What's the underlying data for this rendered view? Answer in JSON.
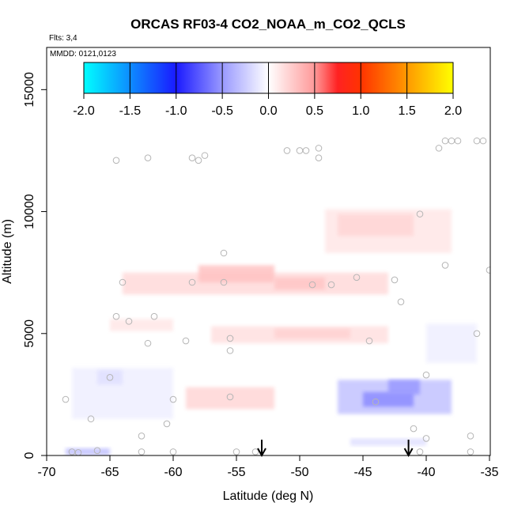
{
  "chart_data": {
    "type": "heatmap",
    "title": "ORCAS RF03-4 CO2_NOAA_m_CO2_QCLS",
    "annotations": {
      "flights": "Flts: 3,4",
      "dates": "MMDD: 0121,0123"
    },
    "xlabel": "Latitude (deg N)",
    "ylabel": "Altitude (m)",
    "xlim": [
      -70,
      -35
    ],
    "ylim": [
      0,
      16000
    ],
    "x_ticks": [
      "-70",
      "-65",
      "-60",
      "-55",
      "-50",
      "-45",
      "-40",
      "-35"
    ],
    "y_ticks": [
      "0",
      "5000",
      "10000",
      "15000"
    ],
    "colorbar": {
      "range": [
        -2.0,
        2.0
      ],
      "ticks": [
        "-2.0",
        "-1.5",
        "-1.0",
        "-0.5",
        "0.0",
        "0.5",
        "1.0",
        "1.5",
        "2.0"
      ],
      "stops": [
        {
          "value": -2.0,
          "color": "#00ffff"
        },
        {
          "value": -1.0,
          "color": "#1a1aff"
        },
        {
          "value": -0.5,
          "color": "#9999ff"
        },
        {
          "value": 0.0,
          "color": "#ffffff"
        },
        {
          "value": 0.5,
          "color": "#ff9999"
        },
        {
          "value": 0.75,
          "color": "#ff2222"
        },
        {
          "value": 1.0,
          "color": "#ff3300"
        },
        {
          "value": 1.5,
          "color": "#ff9900"
        },
        {
          "value": 2.0,
          "color": "#ffff00"
        }
      ]
    },
    "field_regions": [
      {
        "lat": [
          -48,
          -38
        ],
        "alt": [
          8300,
          10100
        ],
        "value": 0.12
      },
      {
        "lat": [
          -47,
          -41
        ],
        "alt": [
          9000,
          9900
        ],
        "value": 0.2
      },
      {
        "lat": [
          -64,
          -43
        ],
        "alt": [
          6600,
          7500
        ],
        "value": 0.18
      },
      {
        "lat": [
          -58,
          -52
        ],
        "alt": [
          7100,
          7800
        ],
        "value": 0.3
      },
      {
        "lat": [
          -52,
          -48
        ],
        "alt": [
          6800,
          7300
        ],
        "value": 0.28
      },
      {
        "lat": [
          -57,
          -43
        ],
        "alt": [
          4600,
          5300
        ],
        "value": 0.15
      },
      {
        "lat": [
          -52,
          -46
        ],
        "alt": [
          4800,
          5200
        ],
        "value": 0.22
      },
      {
        "lat": [
          -59,
          -52
        ],
        "alt": [
          1900,
          2800
        ],
        "value": 0.2
      },
      {
        "lat": [
          -65,
          -60
        ],
        "alt": [
          5100,
          5600
        ],
        "value": 0.12
      },
      {
        "lat": [
          -47,
          -38
        ],
        "alt": [
          1700,
          3100
        ],
        "value": -0.3
      },
      {
        "lat": [
          -45,
          -41
        ],
        "alt": [
          2000,
          2600
        ],
        "value": -0.55
      },
      {
        "lat": [
          -43,
          -40.5
        ],
        "alt": [
          2500,
          3100
        ],
        "value": -0.5
      },
      {
        "lat": [
          -68,
          -60
        ],
        "alt": [
          1500,
          3600
        ],
        "value": -0.08
      },
      {
        "lat": [
          -66,
          -64
        ],
        "alt": [
          2900,
          3500
        ],
        "value": -0.15
      },
      {
        "lat": [
          -46,
          -40
        ],
        "alt": [
          400,
          700
        ],
        "value": -0.15
      },
      {
        "lat": [
          -68.5,
          -65
        ],
        "alt": [
          0,
          300
        ],
        "value": -0.3
      },
      {
        "lat": [
          -40,
          -36
        ],
        "alt": [
          3800,
          5400
        ],
        "value": -0.08
      }
    ],
    "observations": [
      {
        "lat": -68,
        "alt": 150
      },
      {
        "lat": -67.5,
        "alt": 120
      },
      {
        "lat": -66,
        "alt": 200
      },
      {
        "lat": -65,
        "alt": 3200
      },
      {
        "lat": -66.5,
        "alt": 1500
      },
      {
        "lat": -68.5,
        "alt": 2300
      },
      {
        "lat": -64.5,
        "alt": 5700
      },
      {
        "lat": -63.5,
        "alt": 5500
      },
      {
        "lat": -64,
        "alt": 7100
      },
      {
        "lat": -62.5,
        "alt": 800
      },
      {
        "lat": -62.5,
        "alt": 150
      },
      {
        "lat": -62,
        "alt": 4600
      },
      {
        "lat": -61.5,
        "alt": 5700
      },
      {
        "lat": -60.5,
        "alt": 1300
      },
      {
        "lat": -60,
        "alt": 2300
      },
      {
        "lat": -59,
        "alt": 4700
      },
      {
        "lat": -58.5,
        "alt": 7100
      },
      {
        "lat": -60,
        "alt": 150
      },
      {
        "lat": -56,
        "alt": 8300
      },
      {
        "lat": -55.5,
        "alt": 4800
      },
      {
        "lat": -55.5,
        "alt": 4300
      },
      {
        "lat": -56,
        "alt": 7100
      },
      {
        "lat": -55.5,
        "alt": 2400
      },
      {
        "lat": -55,
        "alt": 150
      },
      {
        "lat": -53.5,
        "alt": 150
      },
      {
        "lat": -49,
        "alt": 7000
      },
      {
        "lat": -47.5,
        "alt": 7000
      },
      {
        "lat": -45.5,
        "alt": 7300
      },
      {
        "lat": -44.5,
        "alt": 4700
      },
      {
        "lat": -44,
        "alt": 2200
      },
      {
        "lat": -42.5,
        "alt": 7200
      },
      {
        "lat": -42,
        "alt": 6300
      },
      {
        "lat": -40.5,
        "alt": 9900
      },
      {
        "lat": -40,
        "alt": 3300
      },
      {
        "lat": -40,
        "alt": 700
      },
      {
        "lat": -40.5,
        "alt": 150
      },
      {
        "lat": -41,
        "alt": 1100
      },
      {
        "lat": -38.5,
        "alt": 7800
      },
      {
        "lat": -36,
        "alt": 5000
      },
      {
        "lat": -35,
        "alt": 7600
      },
      {
        "lat": -36.5,
        "alt": 800
      },
      {
        "lat": -36.5,
        "alt": 150
      },
      {
        "lat": -64.5,
        "alt": 12100
      },
      {
        "lat": -62,
        "alt": 12200
      },
      {
        "lat": -58.5,
        "alt": 12200
      },
      {
        "lat": -58,
        "alt": 12100
      },
      {
        "lat": -57.5,
        "alt": 12300
      },
      {
        "lat": -51,
        "alt": 12500
      },
      {
        "lat": -50,
        "alt": 12500
      },
      {
        "lat": -49.5,
        "alt": 12500
      },
      {
        "lat": -48.5,
        "alt": 12600
      },
      {
        "lat": -48.5,
        "alt": 12200
      },
      {
        "lat": -39,
        "alt": 12600
      },
      {
        "lat": -38.5,
        "alt": 12900
      },
      {
        "lat": -38,
        "alt": 12900
      },
      {
        "lat": -37.5,
        "alt": 12900
      },
      {
        "lat": -36,
        "alt": 12900
      },
      {
        "lat": -35.5,
        "alt": 12900
      }
    ],
    "arrows": [
      {
        "lat": -53
      },
      {
        "lat": -41.4
      }
    ],
    "grid": false,
    "legend": "colorbar top-left inside plot"
  }
}
